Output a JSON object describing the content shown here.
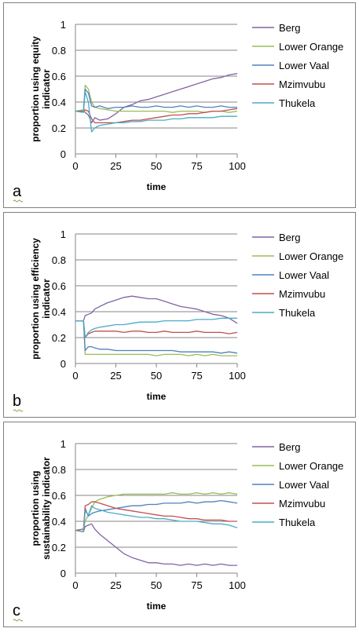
{
  "chart_data": [
    {
      "type": "line",
      "panel_label": "a",
      "xlabel": "time",
      "ylabel": "proportion using equity indicator",
      "ylabel_lines": [
        "proportion using equity",
        "indicator"
      ],
      "xlim": [
        0,
        100
      ],
      "ylim": [
        0,
        1
      ],
      "xticks": [
        0,
        25,
        50,
        75,
        100
      ],
      "yticks": [
        0,
        0.2,
        0.4,
        0.6,
        0.8,
        1
      ],
      "ytick_labels": [
        "0",
        "0.2",
        "0.4",
        "0.6",
        "0.8",
        "1"
      ],
      "grid": "horizontal",
      "legend": "right",
      "x": [
        0,
        5,
        6,
        8,
        10,
        12,
        15,
        20,
        25,
        30,
        35,
        40,
        45,
        50,
        55,
        60,
        65,
        70,
        75,
        80,
        85,
        90,
        95,
        100
      ],
      "series": [
        {
          "name": "Berg",
          "color": "#8064A2",
          "values": [
            0.33,
            0.34,
            0.32,
            0.3,
            0.24,
            0.28,
            0.26,
            0.27,
            0.31,
            0.36,
            0.38,
            0.41,
            0.42,
            0.44,
            0.46,
            0.48,
            0.5,
            0.52,
            0.54,
            0.56,
            0.58,
            0.59,
            0.61,
            0.62
          ]
        },
        {
          "name": "Lower Orange",
          "color": "#9BBB59",
          "values": [
            0.33,
            0.34,
            0.53,
            0.5,
            0.4,
            0.36,
            0.35,
            0.34,
            0.33,
            0.33,
            0.33,
            0.33,
            0.33,
            0.33,
            0.33,
            0.32,
            0.33,
            0.33,
            0.33,
            0.32,
            0.33,
            0.33,
            0.32,
            0.33
          ]
        },
        {
          "name": "Lower Vaal",
          "color": "#4F81BD",
          "values": [
            0.33,
            0.33,
            0.5,
            0.47,
            0.37,
            0.36,
            0.37,
            0.35,
            0.36,
            0.36,
            0.37,
            0.36,
            0.36,
            0.37,
            0.36,
            0.36,
            0.37,
            0.36,
            0.37,
            0.36,
            0.36,
            0.37,
            0.36,
            0.36
          ]
        },
        {
          "name": "Mzimvubu",
          "color": "#C0504D",
          "values": [
            0.33,
            0.33,
            0.34,
            0.33,
            0.27,
            0.24,
            0.24,
            0.24,
            0.24,
            0.25,
            0.26,
            0.26,
            0.27,
            0.28,
            0.29,
            0.3,
            0.3,
            0.31,
            0.31,
            0.32,
            0.33,
            0.33,
            0.34,
            0.35
          ]
        },
        {
          "name": "Thukela",
          "color": "#4BACC6",
          "values": [
            0.33,
            0.32,
            0.48,
            0.4,
            0.17,
            0.2,
            0.22,
            0.23,
            0.24,
            0.24,
            0.25,
            0.25,
            0.26,
            0.26,
            0.26,
            0.27,
            0.27,
            0.28,
            0.28,
            0.28,
            0.28,
            0.29,
            0.29,
            0.29
          ]
        }
      ]
    },
    {
      "type": "line",
      "panel_label": "b",
      "xlabel": "time",
      "ylabel": "proportion using efficiency indicator",
      "ylabel_lines": [
        "proportion using efficiency",
        "indicator"
      ],
      "xlim": [
        0,
        100
      ],
      "ylim": [
        0,
        1
      ],
      "xticks": [
        0,
        25,
        50,
        75,
        100
      ],
      "yticks": [
        0,
        0.2,
        0.4,
        0.6,
        0.8,
        1
      ],
      "ytick_labels": [
        "0",
        "0.2",
        "0.4",
        "0.6",
        "0.8",
        "1"
      ],
      "grid": "horizontal",
      "legend": "right",
      "x": [
        0,
        5,
        6,
        8,
        10,
        12,
        15,
        20,
        25,
        30,
        35,
        40,
        45,
        50,
        55,
        60,
        65,
        70,
        75,
        80,
        85,
        90,
        95,
        100
      ],
      "series": [
        {
          "name": "Berg",
          "color": "#8064A2",
          "values": [
            0.33,
            0.33,
            0.37,
            0.38,
            0.39,
            0.42,
            0.44,
            0.47,
            0.49,
            0.51,
            0.52,
            0.51,
            0.5,
            0.5,
            0.48,
            0.46,
            0.44,
            0.43,
            0.42,
            0.4,
            0.38,
            0.37,
            0.35,
            0.31
          ]
        },
        {
          "name": "Lower Orange",
          "color": "#9BBB59",
          "values": [
            0.33,
            0.33,
            0.07,
            0.07,
            0.07,
            0.07,
            0.07,
            0.07,
            0.07,
            0.07,
            0.07,
            0.07,
            0.07,
            0.06,
            0.07,
            0.07,
            0.07,
            0.06,
            0.07,
            0.06,
            0.07,
            0.06,
            0.06,
            0.06
          ]
        },
        {
          "name": "Lower Vaal",
          "color": "#4F81BD",
          "values": [
            0.33,
            0.33,
            0.1,
            0.13,
            0.13,
            0.12,
            0.11,
            0.11,
            0.1,
            0.1,
            0.1,
            0.1,
            0.1,
            0.1,
            0.1,
            0.1,
            0.09,
            0.09,
            0.09,
            0.09,
            0.09,
            0.08,
            0.09,
            0.08
          ]
        },
        {
          "name": "Mzimvubu",
          "color": "#C0504D",
          "values": [
            0.33,
            0.33,
            0.2,
            0.23,
            0.24,
            0.25,
            0.25,
            0.25,
            0.25,
            0.24,
            0.25,
            0.25,
            0.24,
            0.24,
            0.25,
            0.24,
            0.24,
            0.24,
            0.25,
            0.24,
            0.24,
            0.24,
            0.23,
            0.24
          ]
        },
        {
          "name": "Thukela",
          "color": "#4BACC6",
          "values": [
            0.33,
            0.33,
            0.2,
            0.24,
            0.26,
            0.27,
            0.28,
            0.29,
            0.3,
            0.3,
            0.31,
            0.32,
            0.32,
            0.32,
            0.33,
            0.33,
            0.33,
            0.33,
            0.34,
            0.34,
            0.34,
            0.35,
            0.35,
            0.35
          ]
        }
      ]
    },
    {
      "type": "line",
      "panel_label": "c",
      "xlabel": "time",
      "ylabel": "proportion using sustainability indicator",
      "ylabel_lines": [
        "proportion using",
        "sustainability indicator"
      ],
      "xlim": [
        0,
        100
      ],
      "ylim": [
        0,
        1
      ],
      "xticks": [
        0,
        25,
        50,
        75,
        100
      ],
      "yticks": [
        0,
        0.2,
        0.4,
        0.6,
        0.8,
        1
      ],
      "ytick_labels": [
        "0",
        "0.2",
        "0.4",
        "0.6",
        "0.8",
        "1"
      ],
      "grid": "horizontal",
      "legend": "right",
      "x": [
        0,
        5,
        6,
        8,
        10,
        12,
        15,
        20,
        25,
        30,
        35,
        40,
        45,
        50,
        55,
        60,
        65,
        70,
        75,
        80,
        85,
        90,
        95,
        100
      ],
      "series": [
        {
          "name": "Berg",
          "color": "#8064A2",
          "values": [
            0.33,
            0.32,
            0.36,
            0.37,
            0.38,
            0.34,
            0.3,
            0.25,
            0.2,
            0.15,
            0.12,
            0.1,
            0.08,
            0.08,
            0.07,
            0.07,
            0.06,
            0.07,
            0.06,
            0.07,
            0.06,
            0.07,
            0.06,
            0.06
          ]
        },
        {
          "name": "Lower Orange",
          "color": "#9BBB59",
          "values": [
            0.33,
            0.34,
            0.4,
            0.45,
            0.5,
            0.55,
            0.57,
            0.59,
            0.6,
            0.61,
            0.61,
            0.61,
            0.61,
            0.61,
            0.61,
            0.62,
            0.61,
            0.61,
            0.62,
            0.61,
            0.62,
            0.61,
            0.62,
            0.61
          ]
        },
        {
          "name": "Lower Vaal",
          "color": "#4F81BD",
          "values": [
            0.33,
            0.32,
            0.5,
            0.44,
            0.46,
            0.47,
            0.48,
            0.49,
            0.5,
            0.51,
            0.52,
            0.52,
            0.53,
            0.53,
            0.54,
            0.54,
            0.54,
            0.55,
            0.54,
            0.55,
            0.55,
            0.56,
            0.55,
            0.54
          ]
        },
        {
          "name": "Mzimvubu",
          "color": "#C0504D",
          "values": [
            0.33,
            0.34,
            0.52,
            0.53,
            0.55,
            0.55,
            0.54,
            0.52,
            0.5,
            0.49,
            0.48,
            0.47,
            0.46,
            0.45,
            0.44,
            0.44,
            0.43,
            0.42,
            0.42,
            0.41,
            0.41,
            0.41,
            0.4,
            0.4
          ]
        },
        {
          "name": "Thukela",
          "color": "#4BACC6",
          "values": [
            0.33,
            0.32,
            0.48,
            0.45,
            0.52,
            0.5,
            0.49,
            0.47,
            0.46,
            0.45,
            0.44,
            0.43,
            0.43,
            0.42,
            0.42,
            0.41,
            0.4,
            0.4,
            0.4,
            0.39,
            0.38,
            0.38,
            0.37,
            0.35
          ]
        }
      ]
    }
  ]
}
